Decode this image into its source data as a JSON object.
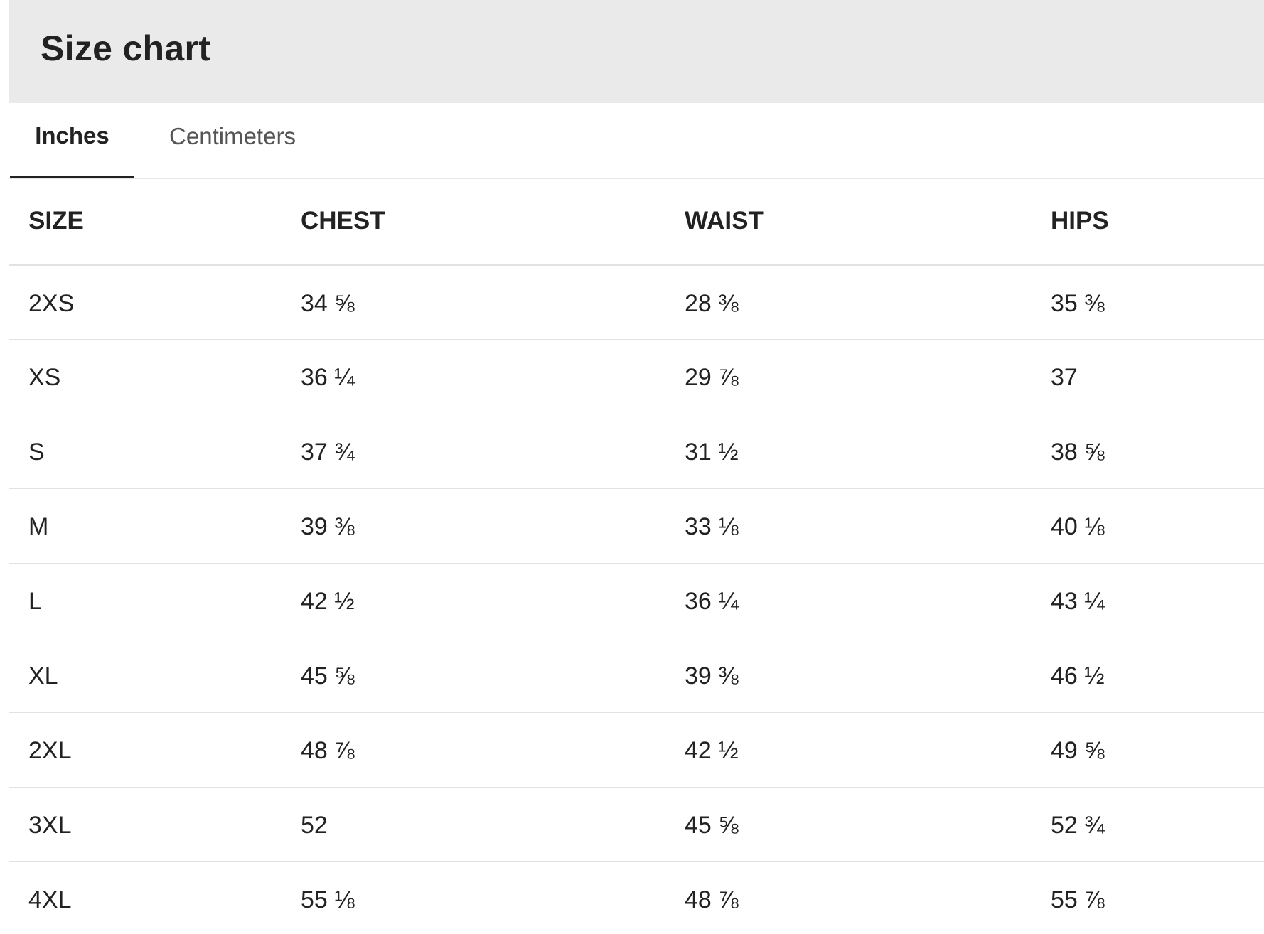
{
  "header": {
    "title": "Size chart"
  },
  "tabs": [
    {
      "label": "Inches",
      "active": true
    },
    {
      "label": "Centimeters",
      "active": false
    }
  ],
  "table": {
    "columns": [
      "SIZE",
      "CHEST",
      "WAIST",
      "HIPS"
    ],
    "rows": [
      [
        "2XS",
        "34 ⅝",
        "28 ⅜",
        "35 ⅜"
      ],
      [
        "XS",
        "36 ¼",
        "29 ⅞",
        "37"
      ],
      [
        "S",
        "37 ¾",
        "31 ½",
        "38 ⅝"
      ],
      [
        "M",
        "39 ⅜",
        "33 ⅛",
        "40 ⅛"
      ],
      [
        "L",
        "42 ½",
        "36 ¼",
        "43 ¼"
      ],
      [
        "XL",
        "45 ⅝",
        "39 ⅜",
        "46 ½"
      ],
      [
        "2XL",
        "48 ⅞",
        "42 ½",
        "49 ⅝"
      ],
      [
        "3XL",
        "52",
        "45 ⅝",
        "52 ¾"
      ],
      [
        "4XL",
        "55 ⅛",
        "48 ⅞",
        "55 ⅞"
      ]
    ]
  }
}
